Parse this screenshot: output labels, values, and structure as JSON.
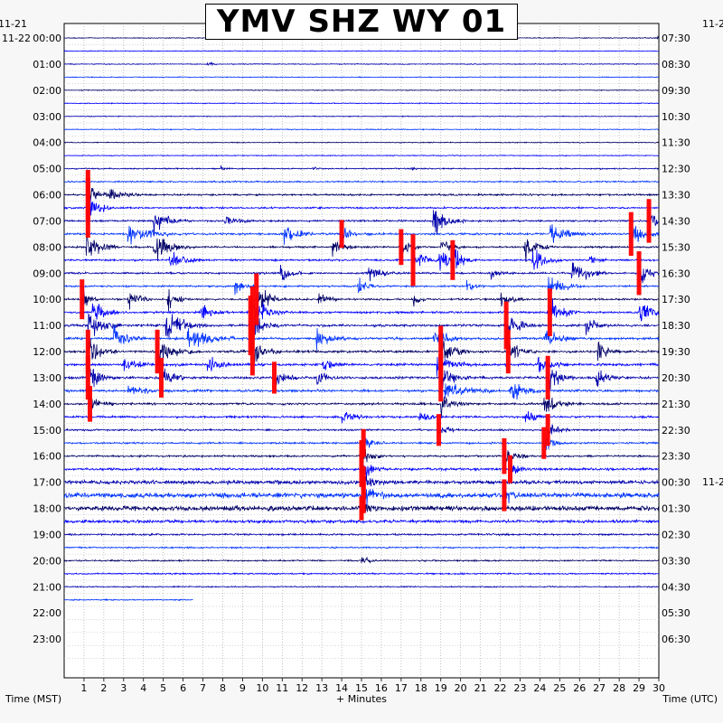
{
  "chart_data": {
    "type": "helicorder",
    "title": "YMV SHZ WY 01",
    "xlabel_left": "Time (MST)",
    "xlabel_center": "+ Minutes",
    "xlabel_right": "Time (UTC)",
    "x_ticks": [
      "1",
      "2",
      "3",
      "4",
      "5",
      "6",
      "7",
      "8",
      "9",
      "10",
      "11",
      "12",
      "13",
      "14",
      "15",
      "16",
      "17",
      "18",
      "19",
      "20",
      "21",
      "22",
      "23",
      "24",
      "25",
      "26",
      "27",
      "28",
      "29",
      "30"
    ],
    "xlim": [
      0,
      30
    ],
    "left_date_top": "11-21",
    "left_date": "11-22",
    "right_date_top": "11-2",
    "right_date_mid": "11-2",
    "left_hours": [
      "00:00",
      "01:00",
      "02:00",
      "03:00",
      "04:00",
      "05:00",
      "06:00",
      "07:00",
      "08:00",
      "09:00",
      "10:00",
      "11:00",
      "12:00",
      "13:00",
      "14:00",
      "15:00",
      "16:00",
      "17:00",
      "18:00",
      "19:00",
      "20:00",
      "21:00",
      "22:00",
      "23:00"
    ],
    "right_hours": [
      "07:30",
      "08:30",
      "09:30",
      "10:30",
      "11:30",
      "12:30",
      "13:30",
      "14:30",
      "15:30",
      "16:30",
      "17:30",
      "18:30",
      "19:30",
      "20:30",
      "21:30",
      "22:30",
      "23:30",
      "00:30",
      "01:30",
      "02:30",
      "03:30",
      "04:30",
      "05:30",
      "06:30"
    ],
    "traces_per_hour": 2,
    "trace_colors": [
      "#000066",
      "#0000ff",
      "#0000aa",
      "#0033ff"
    ],
    "clip_color": "#ff0000",
    "data_end_row": 43,
    "data_end_minute": 6.5,
    "noise_levels": [
      0.3,
      0.3,
      0.3,
      0.3,
      0.3,
      0.3,
      0.3,
      0.3,
      0.3,
      0.3,
      0.4,
      0.5,
      0.6,
      0.6,
      0.6,
      0.7,
      0.6,
      0.6,
      0.6,
      0.6,
      0.6,
      0.7,
      0.8,
      0.8,
      0.8,
      0.8,
      0.8,
      0.8,
      0.7,
      0.7,
      0.6,
      0.6,
      0.6,
      0.8,
      1.2,
      1.6,
      1.6,
      1.0,
      0.6,
      0.5,
      0.5,
      0.5,
      0.4,
      0.4
    ],
    "events": [
      {
        "row": 0,
        "minute": 29.8,
        "amp": 3,
        "dur": 0.2
      },
      {
        "row": 2,
        "minute": 7.2,
        "amp": 5,
        "dur": 0.2
      },
      {
        "row": 10,
        "minute": 7.9,
        "amp": 3,
        "dur": 0.2
      },
      {
        "row": 10,
        "minute": 12.5,
        "amp": 3,
        "dur": 0.2
      },
      {
        "row": 10,
        "minute": 17.5,
        "amp": 3,
        "dur": 0.2
      },
      {
        "row": 12,
        "minute": 1.2,
        "amp": 25,
        "dur": 0.4,
        "clip": true
      },
      {
        "row": 12,
        "minute": 2.3,
        "amp": 12,
        "dur": 0.5
      },
      {
        "row": 13,
        "minute": 1.2,
        "amp": 30,
        "dur": 0.4,
        "clip": true
      },
      {
        "row": 14,
        "minute": 4.5,
        "amp": 18,
        "dur": 0.6
      },
      {
        "row": 14,
        "minute": 8.1,
        "amp": 14,
        "dur": 0.5
      },
      {
        "row": 14,
        "minute": 18.6,
        "amp": 22,
        "dur": 0.6
      },
      {
        "row": 14,
        "minute": 29.5,
        "amp": 22,
        "dur": 0.4,
        "clip": true
      },
      {
        "row": 15,
        "minute": 3.2,
        "amp": 20,
        "dur": 0.8
      },
      {
        "row": 15,
        "minute": 11.1,
        "amp": 18,
        "dur": 0.5
      },
      {
        "row": 15,
        "minute": 14.0,
        "amp": 14,
        "dur": 0.3,
        "clip": true
      },
      {
        "row": 15,
        "minute": 24.5,
        "amp": 18,
        "dur": 0.6
      },
      {
        "row": 15,
        "minute": 28.6,
        "amp": 22,
        "dur": 0.5,
        "clip": true
      },
      {
        "row": 16,
        "minute": 1.1,
        "amp": 24,
        "dur": 0.6
      },
      {
        "row": 16,
        "minute": 4.5,
        "amp": 22,
        "dur": 0.7
      },
      {
        "row": 16,
        "minute": 13.5,
        "amp": 16,
        "dur": 0.4
      },
      {
        "row": 16,
        "minute": 17.0,
        "amp": 18,
        "dur": 0.3,
        "clip": true
      },
      {
        "row": 16,
        "minute": 19.0,
        "amp": 14,
        "dur": 0.4
      },
      {
        "row": 16,
        "minute": 23.2,
        "amp": 22,
        "dur": 0.5
      },
      {
        "row": 17,
        "minute": 5.3,
        "amp": 14,
        "dur": 0.6
      },
      {
        "row": 17,
        "minute": 17.6,
        "amp": 26,
        "dur": 0.4,
        "clip": true
      },
      {
        "row": 17,
        "minute": 18.9,
        "amp": 18,
        "dur": 0.5
      },
      {
        "row": 17,
        "minute": 19.6,
        "amp": 20,
        "dur": 0.4,
        "clip": true
      },
      {
        "row": 17,
        "minute": 23.6,
        "amp": 22,
        "dur": 0.5
      },
      {
        "row": 17,
        "minute": 26.5,
        "amp": 12,
        "dur": 0.3
      },
      {
        "row": 18,
        "minute": 10.9,
        "amp": 14,
        "dur": 0.4
      },
      {
        "row": 18,
        "minute": 15.3,
        "amp": 14,
        "dur": 0.5
      },
      {
        "row": 18,
        "minute": 21.5,
        "amp": 10,
        "dur": 0.3
      },
      {
        "row": 18,
        "minute": 25.6,
        "amp": 22,
        "dur": 0.6
      },
      {
        "row": 18,
        "minute": 29.0,
        "amp": 22,
        "dur": 0.4,
        "clip": true
      },
      {
        "row": 19,
        "minute": 8.6,
        "amp": 12,
        "dur": 0.4
      },
      {
        "row": 19,
        "minute": 14.8,
        "amp": 16,
        "dur": 0.4
      },
      {
        "row": 19,
        "minute": 20.3,
        "amp": 14,
        "dur": 0.3
      },
      {
        "row": 19,
        "minute": 24.4,
        "amp": 20,
        "dur": 0.6
      },
      {
        "row": 20,
        "minute": 0.9,
        "amp": 20,
        "dur": 0.3,
        "clip": true
      },
      {
        "row": 20,
        "minute": 3.2,
        "amp": 22,
        "dur": 0.4
      },
      {
        "row": 20,
        "minute": 5.2,
        "amp": 16,
        "dur": 0.4
      },
      {
        "row": 20,
        "minute": 9.7,
        "amp": 26,
        "dur": 0.5,
        "clip": true
      },
      {
        "row": 20,
        "minute": 12.8,
        "amp": 14,
        "dur": 0.4
      },
      {
        "row": 20,
        "minute": 17.6,
        "amp": 14,
        "dur": 0.3
      },
      {
        "row": 20,
        "minute": 22.0,
        "amp": 16,
        "dur": 0.4
      },
      {
        "row": 21,
        "minute": 1.4,
        "amp": 22,
        "dur": 0.5
      },
      {
        "row": 21,
        "minute": 6.9,
        "amp": 14,
        "dur": 0.4
      },
      {
        "row": 21,
        "minute": 9.5,
        "amp": 26,
        "dur": 0.6,
        "clip": true
      },
      {
        "row": 21,
        "minute": 24.5,
        "amp": 24,
        "dur": 0.5,
        "clip": true
      },
      {
        "row": 21,
        "minute": 29.0,
        "amp": 26,
        "dur": 0.5
      },
      {
        "row": 22,
        "minute": 1.2,
        "amp": 24,
        "dur": 0.6
      },
      {
        "row": 22,
        "minute": 5.1,
        "amp": 22,
        "dur": 0.7
      },
      {
        "row": 22,
        "minute": 9.4,
        "amp": 30,
        "dur": 0.5,
        "clip": true
      },
      {
        "row": 22,
        "minute": 22.3,
        "amp": 24,
        "dur": 0.5,
        "clip": true
      },
      {
        "row": 22,
        "minute": 26.3,
        "amp": 16,
        "dur": 0.4
      },
      {
        "row": 23,
        "minute": 2.5,
        "amp": 20,
        "dur": 0.5
      },
      {
        "row": 23,
        "minute": 6.2,
        "amp": 24,
        "dur": 0.8
      },
      {
        "row": 23,
        "minute": 12.7,
        "amp": 18,
        "dur": 0.5
      },
      {
        "row": 23,
        "minute": 18.6,
        "amp": 20,
        "dur": 0.5
      },
      {
        "row": 23,
        "minute": 24.2,
        "amp": 22,
        "dur": 0.5
      },
      {
        "row": 24,
        "minute": 1.2,
        "amp": 22,
        "dur": 0.5,
        "clip": true
      },
      {
        "row": 24,
        "minute": 4.7,
        "amp": 22,
        "dur": 0.6,
        "clip": true
      },
      {
        "row": 24,
        "minute": 9.5,
        "amp": 24,
        "dur": 0.5,
        "clip": true
      },
      {
        "row": 24,
        "minute": 19.0,
        "amp": 26,
        "dur": 0.5,
        "clip": true
      },
      {
        "row": 24,
        "minute": 22.4,
        "amp": 22,
        "dur": 0.5,
        "clip": true
      },
      {
        "row": 24,
        "minute": 26.9,
        "amp": 18,
        "dur": 0.4
      },
      {
        "row": 25,
        "minute": 3.0,
        "amp": 14,
        "dur": 0.5
      },
      {
        "row": 25,
        "minute": 7.2,
        "amp": 14,
        "dur": 0.5
      },
      {
        "row": 25,
        "minute": 13.0,
        "amp": 16,
        "dur": 0.4
      },
      {
        "row": 25,
        "minute": 18.8,
        "amp": 20,
        "dur": 0.6
      },
      {
        "row": 25,
        "minute": 23.9,
        "amp": 22,
        "dur": 0.5
      },
      {
        "row": 26,
        "minute": 1.2,
        "amp": 22,
        "dur": 0.5,
        "clip": true
      },
      {
        "row": 26,
        "minute": 4.9,
        "amp": 20,
        "dur": 0.4,
        "clip": true
      },
      {
        "row": 26,
        "minute": 10.6,
        "amp": 16,
        "dur": 0.4,
        "clip": true
      },
      {
        "row": 26,
        "minute": 12.7,
        "amp": 14,
        "dur": 0.4
      },
      {
        "row": 26,
        "minute": 19.0,
        "amp": 24,
        "dur": 0.5,
        "clip": true
      },
      {
        "row": 26,
        "minute": 24.4,
        "amp": 22,
        "dur": 0.5,
        "clip": true
      },
      {
        "row": 26,
        "minute": 26.8,
        "amp": 16,
        "dur": 0.4
      },
      {
        "row": 27,
        "minute": 3.2,
        "amp": 12,
        "dur": 0.5
      },
      {
        "row": 27,
        "minute": 19.2,
        "amp": 16,
        "dur": 0.8
      },
      {
        "row": 27,
        "minute": 22.5,
        "amp": 16,
        "dur": 0.6
      },
      {
        "row": 28,
        "minute": 1.3,
        "amp": 18,
        "dur": 0.4,
        "clip": true
      },
      {
        "row": 28,
        "minute": 19.0,
        "amp": 18,
        "dur": 0.5
      },
      {
        "row": 28,
        "minute": 24.2,
        "amp": 20,
        "dur": 0.5
      },
      {
        "row": 29,
        "minute": 14.0,
        "amp": 10,
        "dur": 0.5
      },
      {
        "row": 29,
        "minute": 17.9,
        "amp": 10,
        "dur": 0.4
      },
      {
        "row": 29,
        "minute": 23.2,
        "amp": 14,
        "dur": 0.4
      },
      {
        "row": 30,
        "minute": 18.9,
        "amp": 16,
        "dur": 0.3,
        "clip": true
      },
      {
        "row": 30,
        "minute": 24.4,
        "amp": 16,
        "dur": 0.4,
        "clip": true
      },
      {
        "row": 31,
        "minute": 15.1,
        "amp": 14,
        "dur": 0.4,
        "clip": true
      },
      {
        "row": 31,
        "minute": 24.2,
        "amp": 16,
        "dur": 0.4,
        "clip": true
      },
      {
        "row": 32,
        "minute": 15.0,
        "amp": 16,
        "dur": 0.4,
        "clip": true
      },
      {
        "row": 32,
        "minute": 22.2,
        "amp": 18,
        "dur": 0.4,
        "clip": true
      },
      {
        "row": 33,
        "minute": 15.0,
        "amp": 18,
        "dur": 0.4,
        "clip": true
      },
      {
        "row": 33,
        "minute": 22.5,
        "amp": 14,
        "dur": 0.3,
        "clip": true
      },
      {
        "row": 34,
        "minute": 15.1,
        "amp": 16,
        "dur": 0.4,
        "clip": true
      },
      {
        "row": 35,
        "minute": 15.1,
        "amp": 18,
        "dur": 0.4,
        "clip": true
      },
      {
        "row": 35,
        "minute": 22.2,
        "amp": 16,
        "dur": 0.3,
        "clip": true
      },
      {
        "row": 36,
        "minute": 15.0,
        "amp": 12,
        "dur": 0.3,
        "clip": true
      },
      {
        "row": 40,
        "minute": 15.0,
        "amp": 7,
        "dur": 0.4
      }
    ]
  },
  "ui": {
    "watermark_text": ""
  }
}
